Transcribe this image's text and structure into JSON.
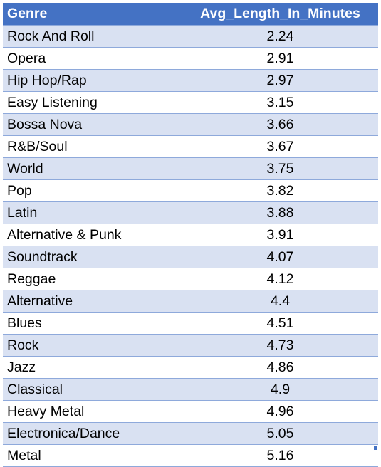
{
  "table": {
    "headers": {
      "genre": "Genre",
      "avg_length": "Avg_Length_In_Minutes"
    },
    "rows": [
      {
        "genre": "Rock And Roll",
        "avg_length": "2.24"
      },
      {
        "genre": "Opera",
        "avg_length": "2.91"
      },
      {
        "genre": "Hip Hop/Rap",
        "avg_length": "2.97"
      },
      {
        "genre": "Easy Listening",
        "avg_length": "3.15"
      },
      {
        "genre": "Bossa Nova",
        "avg_length": "3.66"
      },
      {
        "genre": "R&B/Soul",
        "avg_length": "3.67"
      },
      {
        "genre": "World",
        "avg_length": "3.75"
      },
      {
        "genre": "Pop",
        "avg_length": "3.82"
      },
      {
        "genre": "Latin",
        "avg_length": "3.88"
      },
      {
        "genre": "Alternative & Punk",
        "avg_length": "3.91"
      },
      {
        "genre": "Soundtrack",
        "avg_length": "4.07"
      },
      {
        "genre": "Reggae",
        "avg_length": "4.12"
      },
      {
        "genre": "Alternative",
        "avg_length": "4.4"
      },
      {
        "genre": "Blues",
        "avg_length": "4.51"
      },
      {
        "genre": "Rock",
        "avg_length": "4.73"
      },
      {
        "genre": "Jazz",
        "avg_length": "4.86"
      },
      {
        "genre": "Classical",
        "avg_length": "4.9"
      },
      {
        "genre": "Heavy Metal",
        "avg_length": "4.96"
      },
      {
        "genre": "Electronica/Dance",
        "avg_length": "5.05"
      },
      {
        "genre": "Metal",
        "avg_length": "5.16"
      }
    ]
  },
  "colors": {
    "header_bg": "#4472c4",
    "header_text": "#ffffff",
    "band_row": "#d9e1f2",
    "plain_row": "#ffffff",
    "row_border": "#8ea9db"
  }
}
